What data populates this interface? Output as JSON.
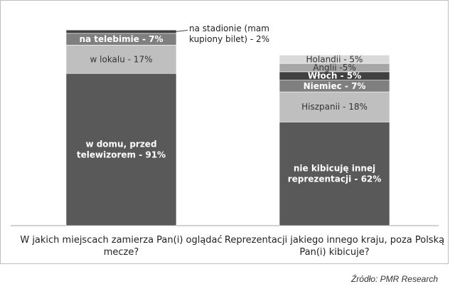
{
  "chart_data": {
    "type": "bar",
    "stacked": true,
    "categories": [
      "W jakich miejscach zamierza Pan(i) oglądać mecze?",
      "Reprezentacji jakiego innego kraju, poza Polską Pan(i) kibicuje?"
    ],
    "category_label_lines": [
      [
        "W jakich miejscach zamierza Pan(i) oglądać",
        "mecze?"
      ],
      [
        "Reprezentacji jakiego innego kraju, poza Polską",
        "Pan(i) kibicuje?"
      ]
    ],
    "bars": [
      {
        "segments": [
          {
            "lines": [
              "w domu, przed",
              "telewizorem - 91%"
            ],
            "value": 91,
            "color": "#595959",
            "text_color": "#ffffff",
            "bold": true
          },
          {
            "lines": [
              "w lokalu - 17%"
            ],
            "value": 17,
            "color": "#bfbfbf",
            "text_color": "#333333",
            "bold": false
          },
          {
            "lines": [
              "na telebimie - 7%"
            ],
            "value": 7,
            "color": "#7f7f7f",
            "text_color": "#ffffff",
            "bold": true
          },
          {
            "lines": [
              "na stadionie (mam",
              "kupiony bilet) - 2%"
            ],
            "value": 2,
            "color": "#404040",
            "text_color": "#333333",
            "bold": false,
            "outside": true
          }
        ]
      },
      {
        "segments": [
          {
            "lines": [
              "nie kibicuję innej",
              "reprezentacji - 62%"
            ],
            "value": 62,
            "color": "#595959",
            "text_color": "#ffffff",
            "bold": true
          },
          {
            "lines": [
              "Hiszpanii - 18%"
            ],
            "value": 18,
            "color": "#bfbfbf",
            "text_color": "#333333",
            "bold": false
          },
          {
            "lines": [
              "Niemiec - 7%"
            ],
            "value": 7,
            "color": "#7f7f7f",
            "text_color": "#ffffff",
            "bold": true
          },
          {
            "lines": [
              "Włoch - 5%"
            ],
            "value": 5,
            "color": "#404040",
            "text_color": "#ffffff",
            "bold": true
          },
          {
            "lines": [
              "Anglii -5%"
            ],
            "value": 5,
            "color": "#a6a6a6",
            "text_color": "#333333",
            "bold": false
          },
          {
            "lines": [
              "Holandii - 5%"
            ],
            "value": 5,
            "color": "#d9d9d9",
            "text_color": "#333333",
            "bold": false
          }
        ]
      }
    ],
    "title": "",
    "xlabel": "",
    "ylabel": "",
    "grid": false,
    "legend": "none"
  },
  "source_note": "Źródło: PMR Research"
}
